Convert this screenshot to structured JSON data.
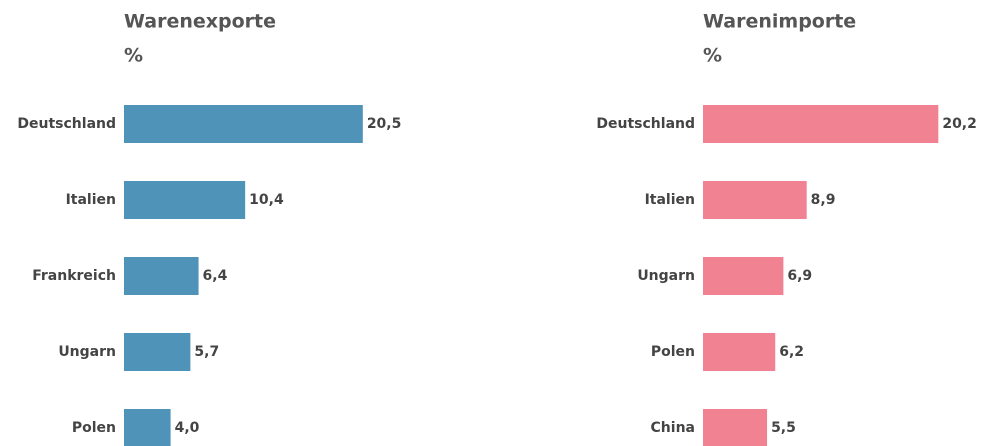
{
  "chart_data": [
    {
      "type": "bar",
      "orientation": "horizontal",
      "title": "Warenexporte",
      "subtitle": "%",
      "categories": [
        "Deutschland",
        "Italien",
        "Frankreich",
        "Ungarn",
        "Polen"
      ],
      "values": [
        20.5,
        10.4,
        6.4,
        5.7,
        4.0
      ],
      "value_labels": [
        "20,5",
        "10,4",
        "6,4",
        "5,7",
        "4,0"
      ],
      "color": "#4f93b8"
    },
    {
      "type": "bar",
      "orientation": "horizontal",
      "title": "Warenimporte",
      "subtitle": "%",
      "categories": [
        "Deutschland",
        "Italien",
        "Ungarn",
        "Polen",
        "China"
      ],
      "values": [
        20.2,
        8.9,
        6.9,
        6.2,
        5.5
      ],
      "value_labels": [
        "20,2",
        "8,9",
        "6,9",
        "6,2",
        "5,5"
      ],
      "color": "#f08291"
    }
  ]
}
